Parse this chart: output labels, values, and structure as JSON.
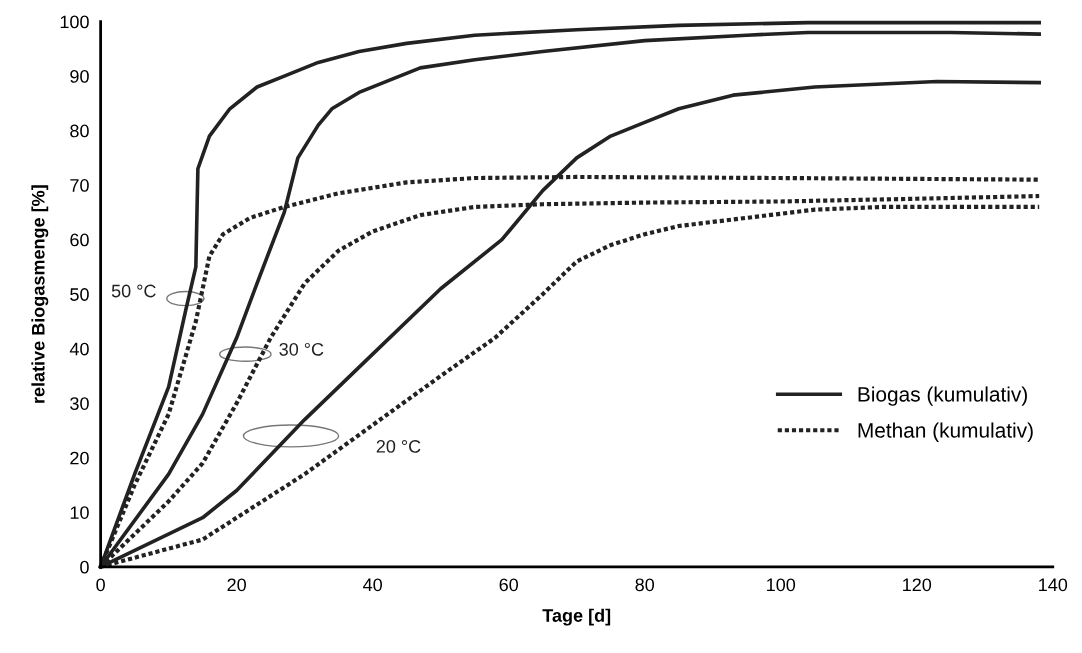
{
  "chart_data": {
    "type": "line",
    "xlabel": "Tage [d]",
    "ylabel": "relative Biogasmenge [%]",
    "xlim": [
      0,
      140
    ],
    "xticks": [
      0,
      20,
      40,
      60,
      80,
      100,
      120,
      140
    ],
    "ylim": [
      0,
      100
    ],
    "yticks": [
      0,
      10,
      20,
      30,
      40,
      50,
      60,
      70,
      80,
      90,
      100
    ],
    "grid": false,
    "legend": "right",
    "marker": "none",
    "series": [
      {
        "name": "Biogas (kumulativ)",
        "color": "#222222",
        "line_style": "solid",
        "x": [
          0,
          5,
          10,
          12.5,
          14,
          14.3,
          16,
          19,
          23,
          27,
          32,
          38,
          45,
          55,
          70,
          85,
          104,
          120,
          138
        ],
        "values": [
          0,
          17,
          33,
          47,
          55,
          73,
          79,
          84,
          88,
          90,
          92.5,
          94.5,
          96,
          97.5,
          98.5,
          99.3,
          99.8,
          99.8,
          99.8
        ]
      },
      {
        "color": "#222222",
        "line_style": "solid",
        "x": [
          0,
          10,
          15,
          20,
          23,
          27,
          29,
          32,
          34,
          38,
          47,
          55,
          65,
          80,
          95,
          104,
          125,
          138
        ],
        "values": [
          0,
          17,
          28,
          42,
          52,
          65,
          75,
          81,
          84,
          87,
          91.5,
          93,
          94.5,
          96.5,
          97.5,
          98,
          98,
          97.7
        ]
      },
      {
        "color": "#222222",
        "line_style": "solid",
        "x": [
          0,
          15,
          20,
          30,
          40,
          50,
          59,
          65,
          70,
          75,
          80,
          85,
          93,
          105,
          123,
          138
        ],
        "values": [
          0,
          9,
          14,
          27,
          39,
          51,
          60,
          69,
          75,
          79,
          81.5,
          84,
          86.5,
          88,
          89,
          88.8
        ]
      },
      {
        "name": "Methan (kumulativ)",
        "color": "#222222",
        "line_style": "dotted",
        "x": [
          0,
          5,
          10,
          14,
          16,
          18,
          22,
          27,
          35,
          45,
          55,
          70,
          100,
          138
        ],
        "values": [
          0,
          15,
          28,
          45,
          57,
          61,
          64,
          66,
          68.5,
          70.5,
          71.3,
          71.5,
          71.3,
          71
        ]
      },
      {
        "color": "#222222",
        "line_style": "dotted",
        "x": [
          0,
          10,
          15,
          20,
          25,
          30,
          35,
          40,
          47,
          55,
          65,
          80,
          100,
          120,
          138
        ],
        "values": [
          0,
          12,
          19,
          30,
          42,
          52,
          58,
          61.5,
          64.5,
          66,
          66.5,
          66.8,
          67,
          67.5,
          68
        ]
      },
      {
        "color": "#222222",
        "line_style": "dotted",
        "x": [
          0,
          15,
          20,
          30,
          40,
          50,
          58,
          65,
          70,
          75,
          80,
          85,
          95,
          105,
          115,
          138
        ],
        "values": [
          0,
          5,
          9,
          17,
          26,
          35,
          42,
          50,
          56,
          59,
          61,
          62.5,
          64,
          65.5,
          66,
          66
        ]
      }
    ],
    "annotations": [
      "50 °C",
      "30 °C",
      "20 °C"
    ]
  }
}
